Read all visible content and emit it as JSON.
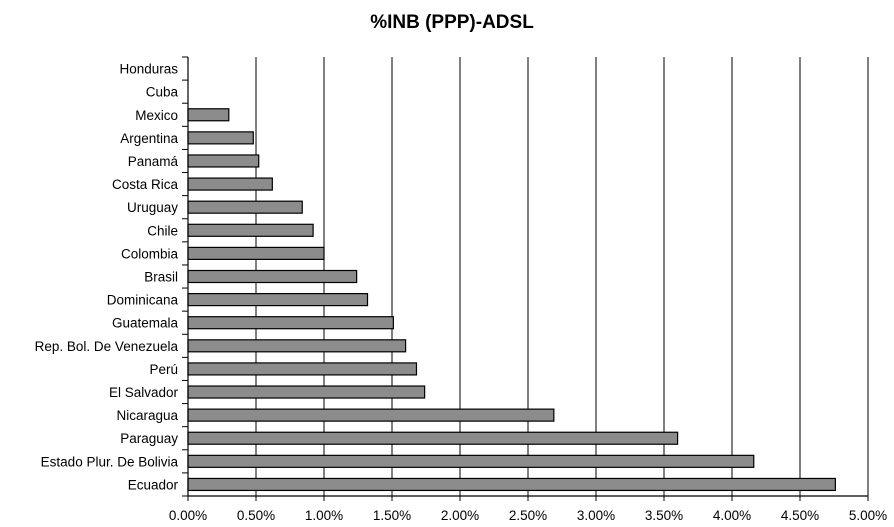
{
  "chart_data": {
    "type": "bar",
    "orientation": "horizontal",
    "title": "%INB (PPP)-ADSL",
    "xlabel": "",
    "ylabel": "",
    "categories": [
      "Honduras",
      "Cuba",
      "Mexico",
      "Argentina",
      "Panamá",
      "Costa Rica",
      "Uruguay",
      "Chile",
      "Colombia",
      "Brasil",
      "Dominicana",
      "Guatemala",
      "Rep. Bol. De Venezuela",
      "Perú",
      "El Salvador",
      "Nicaragua",
      "Paraguay",
      "Estado Plur. De Bolivia",
      "Ecuador"
    ],
    "values": [
      0,
      0,
      0.3,
      0.48,
      0.52,
      0.62,
      0.84,
      0.92,
      1.0,
      1.24,
      1.32,
      1.51,
      1.6,
      1.68,
      1.74,
      2.69,
      3.6,
      4.16,
      4.76
    ],
    "xlim": [
      0,
      5
    ],
    "x_ticks": [
      "0.00%",
      "0.50%",
      "1.00%",
      "1.50%",
      "2.00%",
      "2.50%",
      "3.00%",
      "3.50%",
      "4.00%",
      "4.50%",
      "5.00%"
    ],
    "x_tick_step": 0.5,
    "grid": "vertical",
    "legend": "none",
    "colors": {
      "bar_fill": "#8c8c8c",
      "bar_stroke": "#000000",
      "gridline": "#000000",
      "axis": "#000000",
      "text": "#000000"
    }
  }
}
